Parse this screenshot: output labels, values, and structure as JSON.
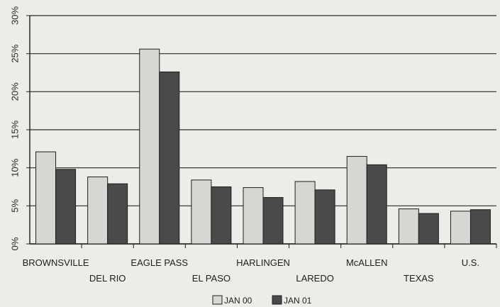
{
  "chart_data": {
    "type": "bar",
    "title": "",
    "xlabel": "",
    "ylabel": "",
    "ylim": [
      0,
      30
    ],
    "y_ticks": [
      0,
      5,
      10,
      15,
      20,
      25,
      30
    ],
    "y_tick_labels": [
      "0%",
      "5%",
      "10%",
      "15%",
      "20%",
      "25%",
      "30%"
    ],
    "grid": true,
    "legend_position": "bottom-center",
    "categories": [
      "BROWNSVILLE",
      "DEL RIO",
      "EAGLE PASS",
      "EL PASO",
      "HARLINGEN",
      "LAREDO",
      "McALLEN",
      "TEXAS",
      "U.S."
    ],
    "series": [
      {
        "name": "JAN 00",
        "color": "#d6d6d3",
        "values": [
          12.1,
          8.8,
          25.6,
          8.4,
          7.4,
          8.2,
          11.5,
          4.6,
          4.3
        ]
      },
      {
        "name": "JAN 01",
        "color": "#4a4a4a",
        "values": [
          9.8,
          7.9,
          22.6,
          7.5,
          6.1,
          7.1,
          10.4,
          4.0,
          4.5
        ]
      }
    ]
  }
}
